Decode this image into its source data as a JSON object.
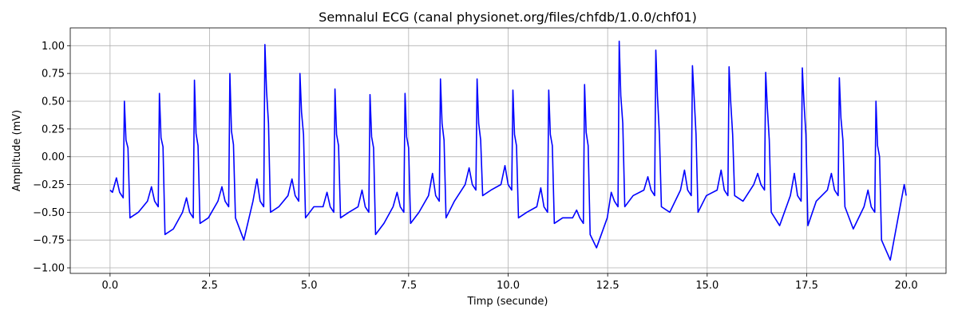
{
  "chart_data": {
    "type": "line",
    "title": "Semnalul ECG (canal physionet.org/files/chfdb/1.0.0/chf01)",
    "x_label": "Timp (secunde)",
    "y_label": "Amplitude (mV)",
    "color": "#0000ff",
    "grid": true,
    "xlim": [
      -1.0,
      21.0
    ],
    "ylim": [
      -1.05,
      1.16
    ],
    "xticks": [
      {
        "value": 0,
        "label": "0.0"
      },
      {
        "value": 2.5,
        "label": "2.5"
      },
      {
        "value": 5,
        "label": "5.0"
      },
      {
        "value": 7.5,
        "label": "7.5"
      },
      {
        "value": 10,
        "label": "10.0"
      },
      {
        "value": 12.5,
        "label": "12.5"
      },
      {
        "value": 15,
        "label": "15.0"
      },
      {
        "value": 17.5,
        "label": "17.5"
      },
      {
        "value": 20,
        "label": "20.0"
      }
    ],
    "yticks": [
      {
        "value": -1,
        "label": "−1.00"
      },
      {
        "value": -0.75,
        "label": "−0.75"
      },
      {
        "value": -0.5,
        "label": "−0.50"
      },
      {
        "value": -0.25,
        "label": "−0.25"
      },
      {
        "value": 0,
        "label": "0.00"
      },
      {
        "value": 0.25,
        "label": "0.25"
      },
      {
        "value": 0.5,
        "label": "0.50"
      },
      {
        "value": 0.75,
        "label": "0.75"
      },
      {
        "value": 1,
        "label": "1.00"
      }
    ],
    "x": [
      0.0,
      0.06,
      0.16,
      0.24,
      0.33,
      0.36,
      0.4,
      0.45,
      0.5,
      0.71,
      0.94,
      1.04,
      1.12,
      1.21,
      1.24,
      1.28,
      1.33,
      1.38,
      1.59,
      1.82,
      1.92,
      2.0,
      2.09,
      2.12,
      2.16,
      2.21,
      2.26,
      2.47,
      2.71,
      2.81,
      2.89,
      2.98,
      3.01,
      3.05,
      3.1,
      3.15,
      3.36,
      3.59,
      3.69,
      3.77,
      3.86,
      3.89,
      3.93,
      3.98,
      4.03,
      4.24,
      4.47,
      4.57,
      4.65,
      4.74,
      4.77,
      4.81,
      4.86,
      4.91,
      5.12,
      5.35,
      5.45,
      5.53,
      5.62,
      5.65,
      5.69,
      5.74,
      5.79,
      6.0,
      6.23,
      6.33,
      6.41,
      6.5,
      6.53,
      6.57,
      6.62,
      6.67,
      6.88,
      7.11,
      7.21,
      7.29,
      7.38,
      7.41,
      7.45,
      7.5,
      7.55,
      7.76,
      8.0,
      8.1,
      8.18,
      8.27,
      8.3,
      8.34,
      8.39,
      8.44,
      8.65,
      8.92,
      9.02,
      9.1,
      9.19,
      9.22,
      9.26,
      9.31,
      9.36,
      9.57,
      9.82,
      9.92,
      10.0,
      10.09,
      10.12,
      10.16,
      10.21,
      10.26,
      10.47,
      10.72,
      10.82,
      10.9,
      10.99,
      11.02,
      11.06,
      11.11,
      11.16,
      11.37,
      11.62,
      11.72,
      11.8,
      11.89,
      11.92,
      11.96,
      12.01,
      12.06,
      12.22,
      12.49,
      12.59,
      12.67,
      12.76,
      12.79,
      12.83,
      12.88,
      12.93,
      13.14,
      13.41,
      13.51,
      13.59,
      13.68,
      13.71,
      13.75,
      13.8,
      13.85,
      14.06,
      14.33,
      14.43,
      14.51,
      14.6,
      14.63,
      14.67,
      14.72,
      14.77,
      14.98,
      15.25,
      15.35,
      15.43,
      15.52,
      15.55,
      15.59,
      15.64,
      15.69,
      15.9,
      16.17,
      16.27,
      16.35,
      16.44,
      16.47,
      16.51,
      16.56,
      16.61,
      16.82,
      17.09,
      17.19,
      17.27,
      17.36,
      17.39,
      17.43,
      17.48,
      17.53,
      17.74,
      18.02,
      18.12,
      18.2,
      18.29,
      18.32,
      18.36,
      18.41,
      18.46,
      18.67,
      18.94,
      19.04,
      19.12,
      19.21,
      19.24,
      19.28,
      19.33,
      19.38,
      19.6,
      19.95,
      20.0
    ],
    "values": [
      -0.3,
      -0.32,
      -0.19,
      -0.32,
      -0.37,
      0.5,
      0.15,
      0.08,
      -0.55,
      -0.5,
      -0.4,
      -0.27,
      -0.4,
      -0.45,
      0.57,
      0.17,
      0.09,
      -0.7,
      -0.65,
      -0.5,
      -0.37,
      -0.5,
      -0.55,
      0.69,
      0.21,
      0.1,
      -0.6,
      -0.55,
      -0.4,
      -0.27,
      -0.4,
      -0.45,
      0.75,
      0.23,
      0.11,
      -0.55,
      -0.75,
      -0.4,
      -0.2,
      -0.4,
      -0.45,
      1.01,
      0.6,
      0.3,
      -0.5,
      -0.45,
      -0.35,
      -0.2,
      -0.35,
      -0.4,
      0.75,
      0.4,
      0.2,
      -0.55,
      -0.45,
      -0.45,
      -0.32,
      -0.45,
      -0.5,
      0.61,
      0.2,
      0.1,
      -0.55,
      -0.5,
      -0.45,
      -0.3,
      -0.45,
      -0.5,
      0.56,
      0.18,
      0.08,
      -0.7,
      -0.6,
      -0.45,
      -0.32,
      -0.45,
      -0.5,
      0.57,
      0.18,
      0.08,
      -0.6,
      -0.5,
      -0.35,
      -0.15,
      -0.35,
      -0.4,
      0.7,
      0.3,
      0.15,
      -0.55,
      -0.4,
      -0.25,
      -0.1,
      -0.25,
      -0.3,
      0.7,
      0.3,
      0.15,
      -0.35,
      -0.3,
      -0.25,
      -0.08,
      -0.25,
      -0.3,
      0.6,
      0.2,
      0.1,
      -0.55,
      -0.5,
      -0.45,
      -0.28,
      -0.45,
      -0.5,
      0.6,
      0.2,
      0.1,
      -0.6,
      -0.55,
      -0.55,
      -0.48,
      -0.55,
      -0.6,
      0.65,
      0.22,
      0.1,
      -0.7,
      -0.82,
      -0.55,
      -0.32,
      -0.4,
      -0.45,
      1.04,
      0.55,
      0.3,
      -0.45,
      -0.35,
      -0.3,
      -0.18,
      -0.3,
      -0.35,
      0.96,
      0.55,
      0.2,
      -0.45,
      -0.5,
      -0.3,
      -0.12,
      -0.3,
      -0.35,
      0.82,
      0.55,
      0.2,
      -0.5,
      -0.35,
      -0.3,
      -0.12,
      -0.3,
      -0.35,
      0.81,
      0.5,
      0.2,
      -0.35,
      -0.4,
      -0.25,
      -0.15,
      -0.25,
      -0.3,
      0.76,
      0.45,
      0.15,
      -0.5,
      -0.62,
      -0.35,
      -0.15,
      -0.35,
      -0.4,
      0.8,
      0.5,
      0.2,
      -0.62,
      -0.4,
      -0.3,
      -0.15,
      -0.3,
      -0.35,
      0.71,
      0.35,
      0.15,
      -0.45,
      -0.65,
      -0.45,
      -0.3,
      -0.45,
      -0.5,
      0.5,
      0.1,
      0.0,
      -0.75,
      -0.93,
      -0.25,
      -0.35
    ]
  }
}
